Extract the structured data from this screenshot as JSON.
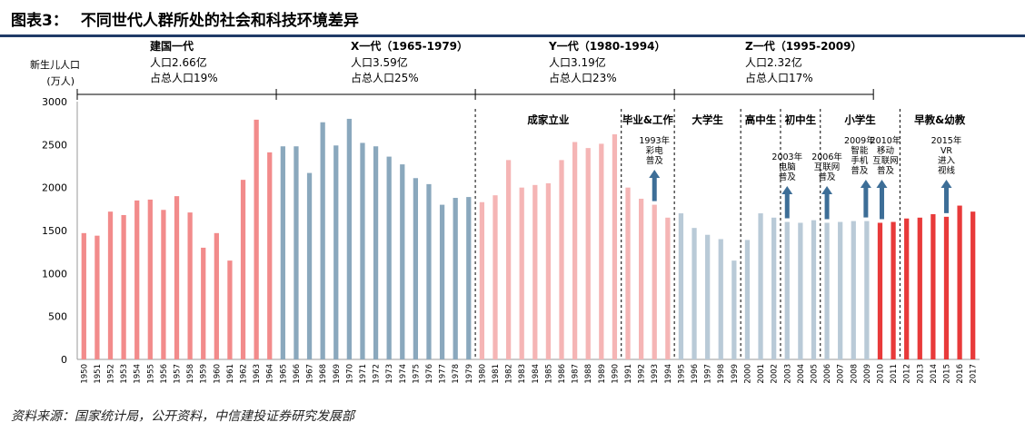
{
  "header": {
    "figure_number": "图表3：",
    "title": "不同世代人群所处的社会和科技环境差异"
  },
  "source": "资料来源：国家统计局，公开资料，中信建投证券研究发展部",
  "colors": {
    "title_rule": "#1f3a67",
    "founding": "#f28b8b",
    "x_gen": "#8aa8bd",
    "y_gen": "#f5b5b5",
    "z_gen": "#b9cad7",
    "gen_alpha": "#e83a3a",
    "arrow": "#3d6e97"
  },
  "chart_data": {
    "type": "bar",
    "title": "不同世代人群所处的社会和科技环境差异",
    "ylabel_lines": [
      "新生儿人口",
      "(万人)"
    ],
    "ylim": [
      0,
      3000
    ],
    "yticks": [
      0,
      500,
      1000,
      1500,
      2000,
      2500,
      3000
    ],
    "categories": [
      "1950",
      "1951",
      "1952",
      "1953",
      "1954",
      "1955",
      "1956",
      "1957",
      "1958",
      "1959",
      "1960",
      "1961",
      "1962",
      "1963",
      "1964",
      "1965",
      "1966",
      "1967",
      "1968",
      "1969",
      "1970",
      "1971",
      "1972",
      "1973",
      "1974",
      "1975",
      "1976",
      "1977",
      "1978",
      "1979",
      "1980",
      "1981",
      "1982",
      "1983",
      "1984",
      "1985",
      "1986",
      "1987",
      "1988",
      "1989",
      "1990",
      "1991",
      "1992",
      "1993",
      "1994",
      "1995",
      "1996",
      "1997",
      "1998",
      "1999",
      "2000",
      "2001",
      "2002",
      "2003",
      "2004",
      "2005",
      "2006",
      "2007",
      "2008",
      "2009",
      "2010",
      "2011",
      "2012",
      "2013",
      "2014",
      "2015",
      "2016",
      "2017"
    ],
    "values": [
      1470,
      1440,
      1720,
      1680,
      1850,
      1860,
      1740,
      1900,
      1710,
      1300,
      1470,
      1150,
      2090,
      2790,
      2410,
      2480,
      2480,
      2170,
      2760,
      2490,
      2800,
      2520,
      2480,
      2360,
      2270,
      2110,
      2040,
      1800,
      1880,
      1890,
      1830,
      1910,
      2320,
      2000,
      2030,
      2050,
      2320,
      2530,
      2460,
      2510,
      2620,
      2000,
      1870,
      1800,
      1650,
      1700,
      1530,
      1450,
      1400,
      1150,
      1390,
      1700,
      1650,
      1600,
      1590,
      1620,
      1590,
      1600,
      1610,
      1610,
      1590,
      1600,
      1640,
      1650,
      1690,
      1660,
      1790,
      1720
    ],
    "groups": [
      {
        "name": "建国一代",
        "start": "1950",
        "end": "1964",
        "population": "人口2.66亿",
        "share": "占总人口19%"
      },
      {
        "name": "X一代（1965-1979）",
        "start": "1965",
        "end": "1979",
        "population": "人口3.59亿",
        "share": "占总人口25%"
      },
      {
        "name": "Y一代（1980-1994）",
        "start": "1980",
        "end": "1994",
        "population": "人口3.19亿",
        "share": "占总人口23%"
      },
      {
        "name": "Z一代（1995-2009）",
        "start": "1995",
        "end": "2009",
        "population": "人口2.32亿",
        "share": "占总人口17%"
      }
    ],
    "stages": [
      "成家立业",
      "毕业&工作",
      "大学生",
      "高中生",
      "初中生",
      "小学生",
      "早教&幼教"
    ],
    "annotations": [
      {
        "year": "1993",
        "lines": [
          "1993年",
          "彩电",
          "普及"
        ]
      },
      {
        "year": "2003",
        "lines": [
          "2003年",
          "电脑",
          "普及"
        ]
      },
      {
        "year": "2006",
        "lines": [
          "2006年",
          "互联网",
          "普及"
        ]
      },
      {
        "year": "2009",
        "lines": [
          "2009年",
          "智能",
          "手机",
          "普及"
        ]
      },
      {
        "year": "2010",
        "lines": [
          "2010年",
          "移动",
          "互联网",
          "普及"
        ]
      },
      {
        "year": "2015",
        "lines": [
          "2015年",
          "VR",
          "进入",
          "视线"
        ]
      }
    ]
  }
}
